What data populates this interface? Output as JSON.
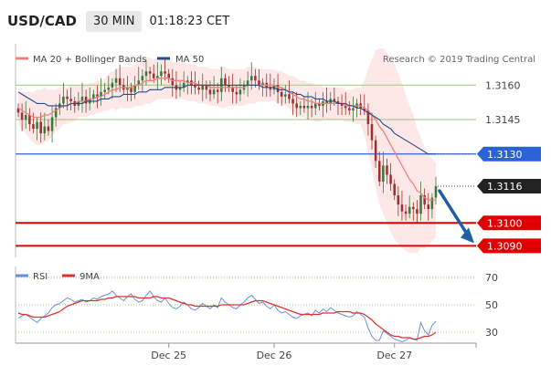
{
  "header": {
    "symbol": "USD/CAD",
    "timeframe": "30 MIN",
    "time": "01:18:23 CET"
  },
  "colors": {
    "ma20": "#f08080",
    "ma50": "#1f4e96",
    "band": "#fde3e3",
    "up": "#3a7a3a",
    "down": "#a03030",
    "support": "#e00000",
    "pivot": "#2a62d8",
    "resistance": "#9ec97a",
    "rsi": "#6a8fd8",
    "rsi_ma": "#e03030",
    "arrow": "#1e5fa8",
    "label_dark": "#222222"
  },
  "chart_data": [
    {
      "type": "candlestick",
      "legend": [
        {
          "label": "MA 20 + Bollinger Bands",
          "color_key": "ma20"
        },
        {
          "label": "MA 50",
          "color_key": "ma50"
        }
      ],
      "credit": "Research © 2019 Trading Central",
      "ylim": [
        1.3085,
        1.3178
      ],
      "legend_placement": "top-left",
      "grid": false,
      "x_ticks": [
        {
          "index": 40,
          "label": "Dec 25"
        },
        {
          "index": 68,
          "label": "Dec 26"
        },
        {
          "index": 100,
          "label": "Dec 27"
        }
      ],
      "levels": [
        {
          "value": 1.316,
          "label": "1.3160",
          "kind": "resistance"
        },
        {
          "value": 1.3145,
          "label": "1.3145",
          "kind": "resistance"
        },
        {
          "value": 1.313,
          "label": "1.3130",
          "kind": "pivot"
        },
        {
          "value": 1.3116,
          "label": "1.3116",
          "kind": "last"
        },
        {
          "value": 1.31,
          "label": "1.3100",
          "kind": "support"
        },
        {
          "value": 1.309,
          "label": "1.3090",
          "kind": "support"
        }
      ],
      "close": [
        1.3148,
        1.3145,
        1.3147,
        1.3143,
        1.3141,
        1.3144,
        1.3139,
        1.3142,
        1.314,
        1.3146,
        1.315,
        1.3152,
        1.3155,
        1.3154,
        1.3153,
        1.3151,
        1.3153,
        1.3155,
        1.3152,
        1.3154,
        1.3156,
        1.3155,
        1.3157,
        1.3158,
        1.3159,
        1.3161,
        1.3163,
        1.316,
        1.3158,
        1.3159,
        1.3157,
        1.316,
        1.3162,
        1.3164,
        1.3166,
        1.3165,
        1.3163,
        1.3164,
        1.3166,
        1.3165,
        1.3163,
        1.316,
        1.3158,
        1.3159,
        1.3161,
        1.3162,
        1.316,
        1.3159,
        1.3158,
        1.316,
        1.3158,
        1.3156,
        1.3158,
        1.3157,
        1.3163,
        1.316,
        1.3159,
        1.3157,
        1.3156,
        1.3158,
        1.316,
        1.3162,
        1.3164,
        1.3162,
        1.316,
        1.3161,
        1.3159,
        1.3158,
        1.316,
        1.3157,
        1.3155,
        1.3156,
        1.3154,
        1.3152,
        1.315,
        1.3151,
        1.315,
        1.3151,
        1.315,
        1.3152,
        1.3151,
        1.3153,
        1.3152,
        1.3154,
        1.3153,
        1.3152,
        1.3151,
        1.315,
        1.3149,
        1.315,
        1.3152,
        1.315,
        1.3149,
        1.3143,
        1.3136,
        1.3127,
        1.3118,
        1.3125,
        1.3121,
        1.3117,
        1.3112,
        1.3108,
        1.3105,
        1.3104,
        1.3107,
        1.3106,
        1.3104,
        1.3112,
        1.3108,
        1.3106,
        1.3111,
        1.3116
      ],
      "ma20": [
        1.315,
        1.3149,
        1.3148,
        1.3147,
        1.3146,
        1.3146,
        1.3146,
        1.3147,
        1.3147,
        1.3148,
        1.3149,
        1.315,
        1.3151,
        1.3151,
        1.3152,
        1.3152,
        1.3153,
        1.3153,
        1.3153,
        1.3154,
        1.3154,
        1.3155,
        1.3155,
        1.3156,
        1.3157,
        1.3158,
        1.3158,
        1.3159,
        1.3159,
        1.3159,
        1.3159,
        1.316,
        1.316,
        1.3161,
        1.3162,
        1.3162,
        1.3162,
        1.3163,
        1.3163,
        1.3163,
        1.3163,
        1.3162,
        1.3162,
        1.3162,
        1.3162,
        1.3161,
        1.3161,
        1.3161,
        1.316,
        1.316,
        1.316,
        1.3159,
        1.3159,
        1.3159,
        1.3159,
        1.3159,
        1.3159,
        1.3159,
        1.3159,
        1.3159,
        1.3159,
        1.316,
        1.316,
        1.316,
        1.316,
        1.316,
        1.316,
        1.316,
        1.316,
        1.3159,
        1.3159,
        1.3158,
        1.3157,
        1.3156,
        1.3155,
        1.3154,
        1.3154,
        1.3153,
        1.3153,
        1.3152,
        1.3152,
        1.3152,
        1.3152,
        1.3152,
        1.3152,
        1.3152,
        1.3152,
        1.3151,
        1.3151,
        1.3151,
        1.3151,
        1.3151,
        1.315,
        1.3149,
        1.3147,
        1.3145,
        1.3142,
        1.314,
        1.3137,
        1.3134,
        1.3131,
        1.3128,
        1.3125,
        1.3122,
        1.3119,
        1.3117,
        1.3114,
        1.3113,
        1.3111,
        1.311,
        1.311,
        1.311
      ],
      "ma50": [
        1.3157,
        1.3156,
        1.3155,
        1.3154,
        1.3153,
        1.3152,
        1.3152,
        1.3152,
        1.3151,
        1.3151,
        1.3151,
        1.3151,
        1.3151,
        1.3151,
        1.3152,
        1.3152,
        1.3152,
        1.3152,
        1.3153,
        1.3153,
        1.3153,
        1.3153,
        1.3154,
        1.3154,
        1.3154,
        1.3155,
        1.3155,
        1.3155,
        1.3156,
        1.3156,
        1.3156,
        1.3156,
        1.3157,
        1.3157,
        1.3157,
        1.3158,
        1.3158,
        1.3158,
        1.3158,
        1.3159,
        1.3159,
        1.3159,
        1.3159,
        1.3159,
        1.3159,
        1.316,
        1.316,
        1.316,
        1.316,
        1.316,
        1.316,
        1.316,
        1.316,
        1.316,
        1.316,
        1.316,
        1.316,
        1.316,
        1.316,
        1.316,
        1.316,
        1.316,
        1.316,
        1.316,
        1.316,
        1.3159,
        1.3159,
        1.3159,
        1.3159,
        1.3158,
        1.3158,
        1.3158,
        1.3157,
        1.3157,
        1.3156,
        1.3156,
        1.3155,
        1.3155,
        1.3155,
        1.3154,
        1.3154,
        1.3154,
        1.3153,
        1.3153,
        1.3153,
        1.3152,
        1.3152,
        1.3152,
        1.3151,
        1.3151,
        1.315,
        1.315,
        1.3149,
        1.3148,
        1.3147,
        1.3146,
        1.3145,
        1.3143,
        1.3142,
        1.3141,
        1.3139,
        1.3138,
        1.3137,
        1.3136,
        1.3135,
        1.3134,
        1.3133,
        1.3132,
        1.3131,
        1.313,
        1.313,
        1.313
      ],
      "band_width": [
        0.0007,
        0.0008,
        0.0009,
        0.001,
        0.0011,
        0.0012,
        0.0012,
        0.0012,
        0.0011,
        0.001,
        0.0009,
        0.0009,
        0.0008,
        0.0008,
        0.0008,
        0.0008,
        0.0007,
        0.0007,
        0.0007,
        0.0007,
        0.0007,
        0.0007,
        0.0007,
        0.0007,
        0.0008,
        0.0008,
        0.0009,
        0.0009,
        0.0009,
        0.0009,
        0.0009,
        0.0009,
        0.0009,
        0.001,
        0.001,
        0.001,
        0.0009,
        0.0009,
        0.0009,
        0.0009,
        0.0009,
        0.0008,
        0.0008,
        0.0008,
        0.0008,
        0.0008,
        0.0008,
        0.0008,
        0.0008,
        0.0008,
        0.0008,
        0.0008,
        0.0008,
        0.0008,
        0.0009,
        0.0009,
        0.0008,
        0.0008,
        0.0008,
        0.0008,
        0.0008,
        0.0008,
        0.0008,
        0.0008,
        0.0007,
        0.0007,
        0.0007,
        0.0007,
        0.0007,
        0.0007,
        0.0007,
        0.0007,
        0.0007,
        0.0008,
        0.0008,
        0.0008,
        0.0008,
        0.0008,
        0.0008,
        0.0008,
        0.0008,
        0.0007,
        0.0007,
        0.0007,
        0.0007,
        0.0007,
        0.0007,
        0.0007,
        0.0007,
        0.0007,
        0.0008,
        0.0008,
        0.0012,
        0.0018,
        0.0024,
        0.003,
        0.0034,
        0.0036,
        0.0037,
        0.0038,
        0.0038,
        0.0037,
        0.0036,
        0.0034,
        0.0032,
        0.003,
        0.0027,
        0.0024,
        0.0022,
        0.002,
        0.0018,
        0.0016
      ],
      "arrow": {
        "from": 1.3114,
        "to": 1.3092
      }
    },
    {
      "type": "line",
      "legend": [
        {
          "label": "RSI",
          "color_key": "rsi"
        },
        {
          "label": "9MA",
          "color_key": "rsi_ma"
        }
      ],
      "ylim": [
        22,
        78
      ],
      "y_ticks": [
        70,
        50,
        30
      ],
      "rsi": [
        40,
        42,
        43,
        41,
        39,
        37,
        40,
        42,
        44,
        48,
        50,
        51,
        53,
        55,
        54,
        52,
        53,
        54,
        52,
        53,
        55,
        54,
        56,
        57,
        58,
        60,
        57,
        55,
        53,
        56,
        58,
        54,
        52,
        53,
        57,
        60,
        56,
        53,
        52,
        55,
        51,
        48,
        47,
        49,
        52,
        50,
        47,
        46,
        48,
        51,
        49,
        47,
        50,
        48,
        55,
        52,
        50,
        48,
        47,
        50,
        52,
        55,
        57,
        54,
        51,
        52,
        49,
        47,
        50,
        46,
        44,
        45,
        43,
        41,
        40,
        42,
        43,
        44,
        42,
        46,
        44,
        47,
        45,
        48,
        46,
        44,
        43,
        42,
        41,
        42,
        45,
        43,
        41,
        33,
        27,
        24,
        24,
        31,
        29,
        27,
        25,
        24,
        23,
        24,
        26,
        25,
        24,
        37,
        31,
        28,
        35,
        38
      ],
      "ma9": [
        44,
        43,
        43,
        42,
        41,
        41,
        41,
        41,
        42,
        43,
        44,
        45,
        47,
        49,
        50,
        51,
        52,
        53,
        53,
        53,
        53,
        53,
        54,
        54,
        55,
        55,
        56,
        56,
        56,
        56,
        56,
        56,
        55,
        55,
        55,
        55,
        56,
        56,
        55,
        55,
        55,
        54,
        53,
        52,
        51,
        50,
        50,
        49,
        49,
        49,
        49,
        49,
        49,
        49,
        50,
        50,
        50,
        50,
        50,
        50,
        50,
        51,
        52,
        53,
        53,
        53,
        52,
        51,
        50,
        49,
        48,
        47,
        46,
        45,
        44,
        43,
        43,
        43,
        43,
        43,
        43,
        44,
        44,
        44,
        44,
        45,
        45,
        45,
        45,
        44,
        44,
        44,
        43,
        41,
        39,
        36,
        34,
        32,
        30,
        28,
        27,
        27,
        26,
        26,
        26,
        25,
        25,
        26,
        27,
        27,
        28,
        30
      ]
    }
  ]
}
